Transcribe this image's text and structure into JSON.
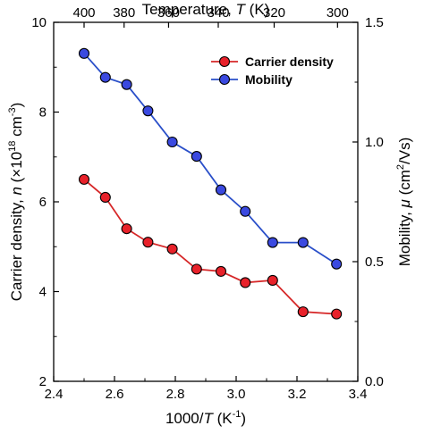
{
  "chart_data": {
    "type": "line",
    "x_label": "1000/T (K⁻¹)",
    "x_label_parts": {
      "prefix": "1000/",
      "var": "T",
      "mid": " (K",
      "sup": "-1",
      "suffix": ")"
    },
    "x_ticks": [
      "2.4",
      "2.6",
      "2.8",
      "3.0",
      "3.2",
      "3.4"
    ],
    "x_range": [
      2.4,
      3.4
    ],
    "top_x_label": "Temperature, T (K)",
    "top_x_label_parts": {
      "prefix": "Temperature, ",
      "var": "T",
      "suffix": " (K)"
    },
    "top_x_ticks": [
      "400",
      "380",
      "360",
      "340",
      "320",
      "300"
    ],
    "left_y_label": "Carrier density, n (×10¹⁸ cm⁻³)",
    "left_y_label_parts": {
      "prefix": "Carrier density, ",
      "var": "n",
      "mid": " (×10",
      "sup1": "18",
      "mid2": " cm",
      "sup2": "-3",
      "suffix": ")"
    },
    "left_y_ticks": [
      "2",
      "4",
      "6",
      "8",
      "10"
    ],
    "left_y_range": [
      2,
      10
    ],
    "right_y_label": "Mobility, μ (cm²/Vs)",
    "right_y_label_parts": {
      "prefix": "Mobility, ",
      "var": "μ",
      "mid": " (cm",
      "sup": "2",
      "suffix": "/Vs)"
    },
    "right_y_ticks": [
      "0.0",
      "0.5",
      "1.0",
      "1.5"
    ],
    "right_y_range": [
      0.0,
      1.5
    ],
    "legend_position": "top-right",
    "series": [
      {
        "name": "Carrier density",
        "axis": "left",
        "color": "#d62728",
        "marker_fill": "#e8212a",
        "x": [
          2.5,
          2.57,
          2.64,
          2.71,
          2.79,
          2.87,
          2.95,
          3.03,
          3.12,
          3.22,
          3.33
        ],
        "y": [
          6.5,
          6.1,
          5.4,
          5.1,
          4.95,
          4.5,
          4.45,
          4.2,
          4.25,
          3.55,
          3.5
        ]
      },
      {
        "name": "Mobility",
        "axis": "right",
        "color": "#2a4fc9",
        "marker_fill": "#3a49e0",
        "x": [
          2.5,
          2.57,
          2.64,
          2.71,
          2.79,
          2.87,
          2.95,
          3.03,
          3.12,
          3.22,
          3.33
        ],
        "y": [
          1.37,
          1.27,
          1.24,
          1.13,
          1.0,
          0.94,
          0.8,
          0.71,
          0.58,
          0.58,
          0.49
        ]
      }
    ]
  }
}
